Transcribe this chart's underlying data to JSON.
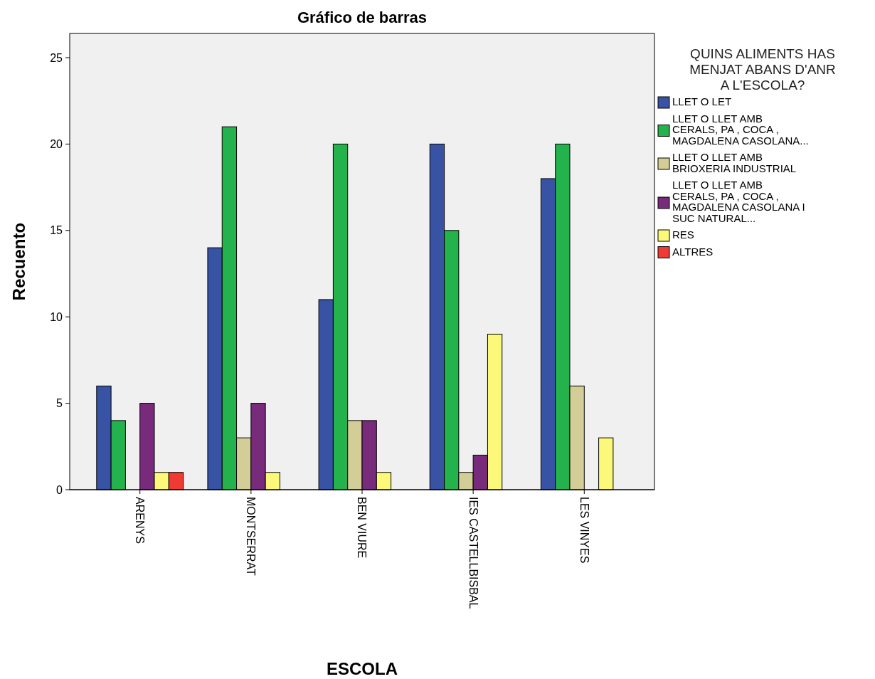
{
  "chart_data": {
    "type": "bar",
    "title": "Gráfico de barras",
    "xlabel": "ESCOLA",
    "ylabel": "Recuento",
    "legend_title": "QUINS ALIMENTS HAS MENJAT ABANS D'ANR A L'ESCOLA?",
    "categories": [
      "ARENYS",
      "MONTSERRAT",
      "BEN VIURE",
      "IES CASTELLBISBAL",
      "LES VINYES"
    ],
    "series": [
      {
        "name": "LLET O LET",
        "color": "#3953a4",
        "values": [
          6,
          14,
          11,
          20,
          18
        ]
      },
      {
        "name": "LLET O LLET AMB CERALS, PA , COCA , MAGDALENA CASOLANA...",
        "color": "#23b24b",
        "values": [
          4,
          21,
          20,
          15,
          20
        ]
      },
      {
        "name": "LLET O LLET AMB BRIOXERIA INDUSTRIAL",
        "color": "#d3ce97",
        "values": [
          null,
          3,
          4,
          1,
          6
        ]
      },
      {
        "name": "LLET O LLET AMB CERALS, PA , COCA , MAGDALENA CASOLANA I SUC NATURAL...",
        "color": "#782b7b",
        "values": [
          5,
          5,
          4,
          2,
          null
        ]
      },
      {
        "name": "RES",
        "color": "#fbf87a",
        "values": [
          1,
          1,
          1,
          9,
          3
        ]
      },
      {
        "name": "ALTRES",
        "color": "#ef3b34",
        "values": [
          1,
          null,
          null,
          null,
          null
        ]
      }
    ],
    "ylim": [
      0,
      26.4
    ],
    "yticks": [
      0,
      5,
      10,
      15,
      20,
      25
    ],
    "legend": "right"
  }
}
